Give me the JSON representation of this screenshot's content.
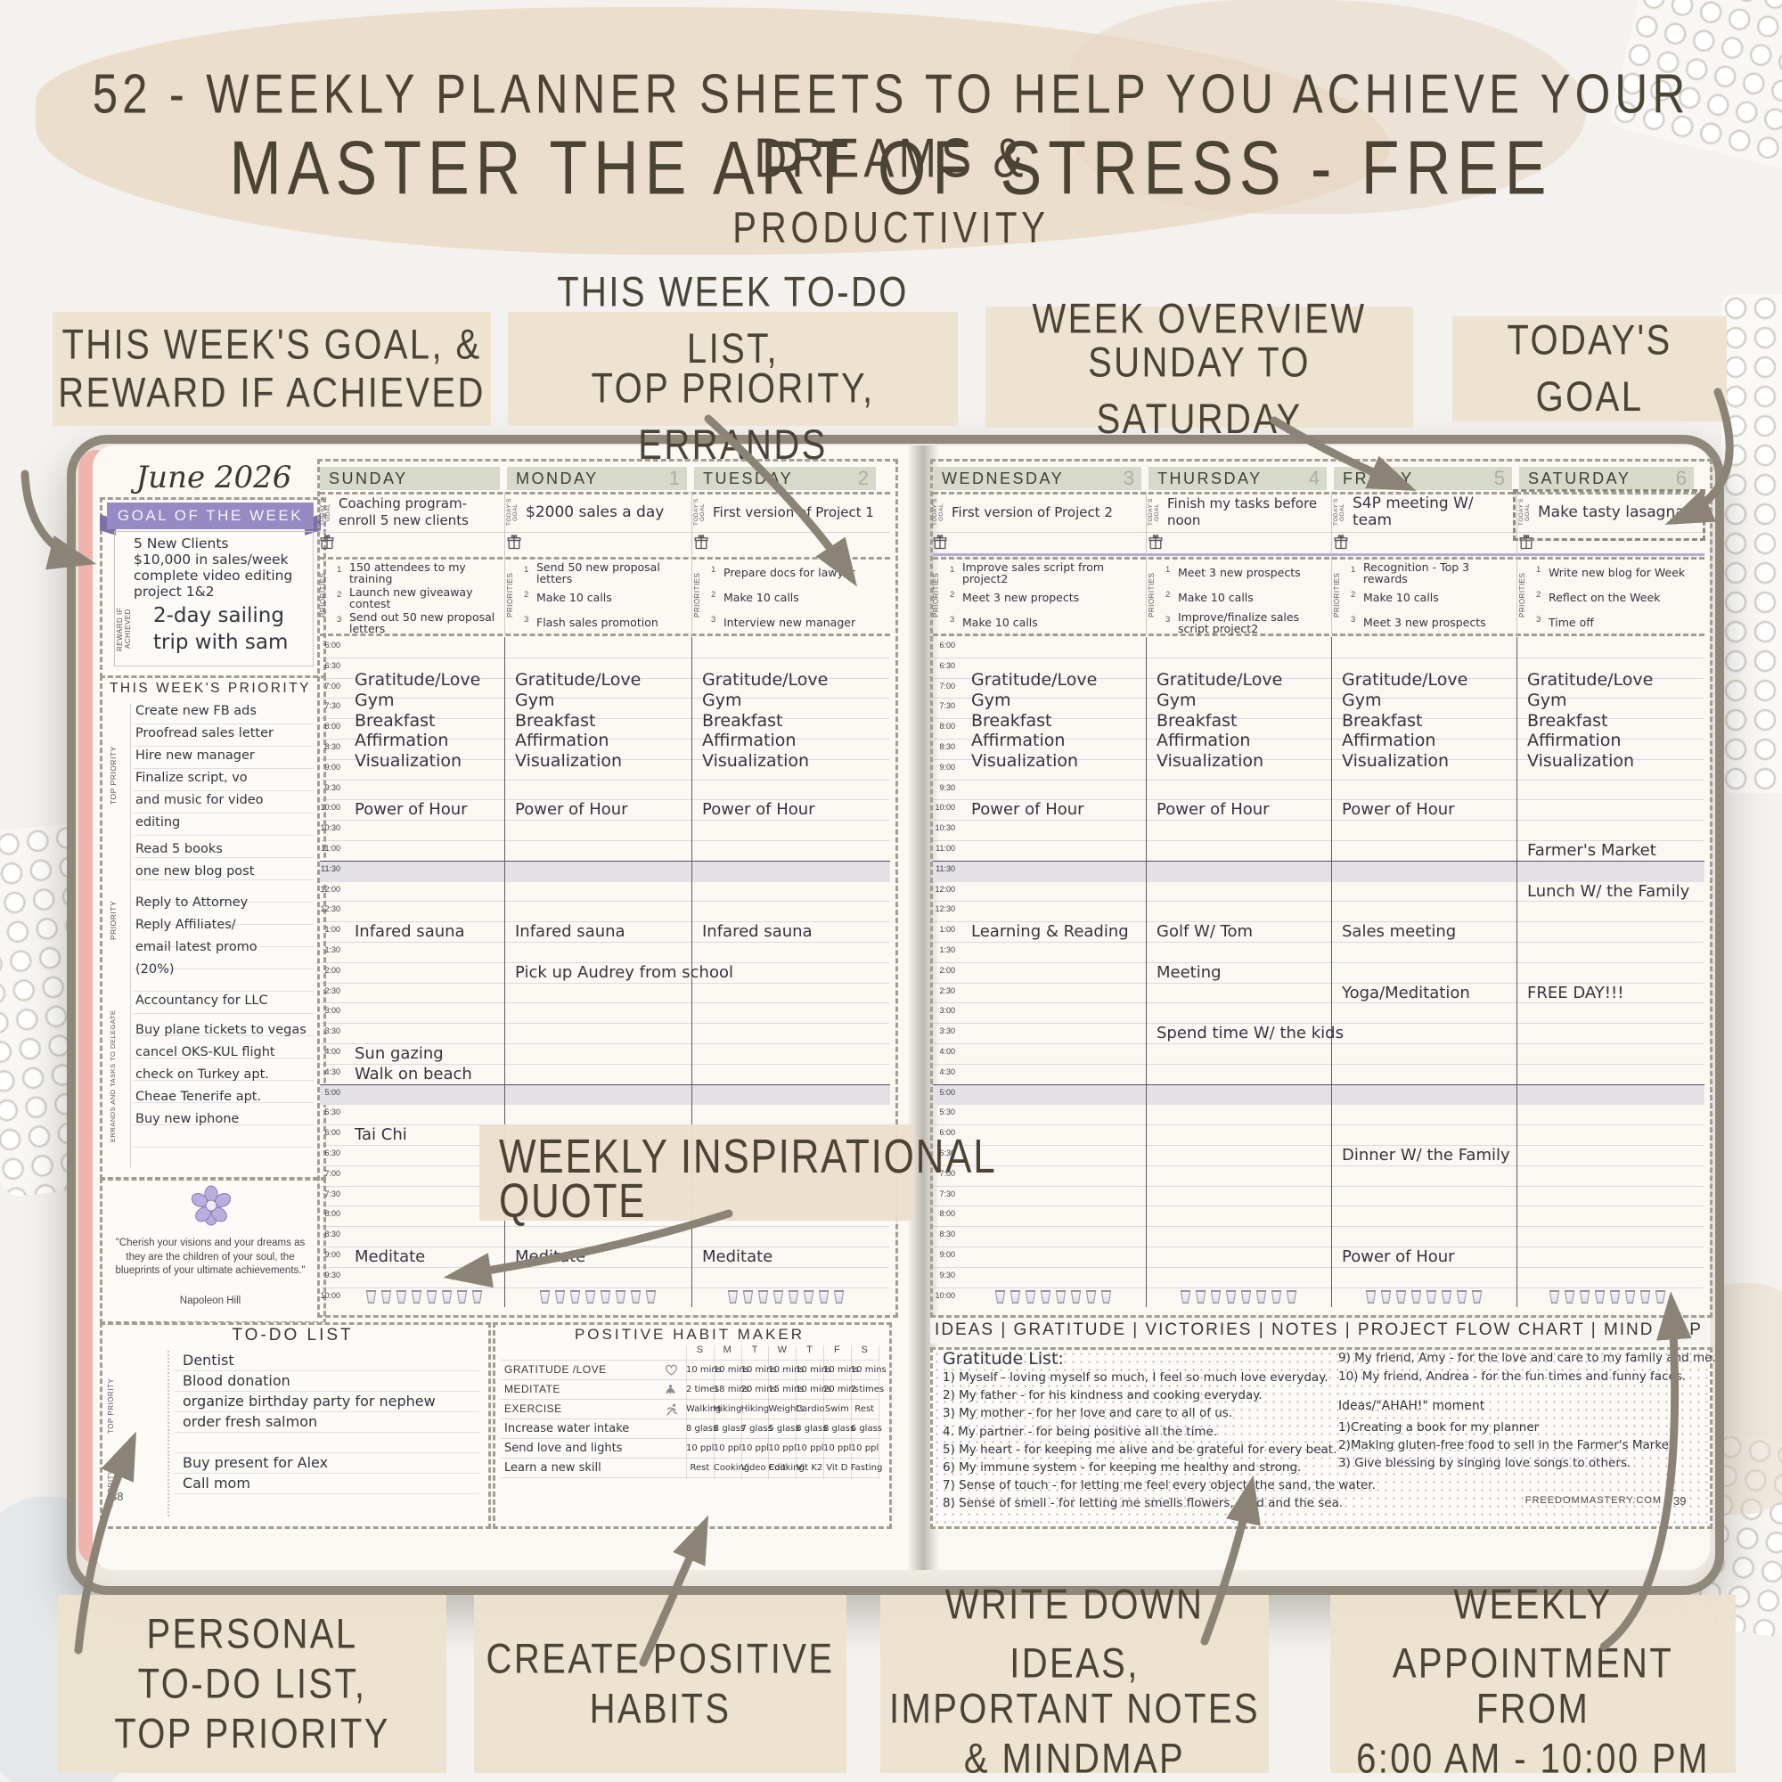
{
  "title": {
    "line1": "52 - WEEKLY PLANNER SHEETS TO HELP YOU ACHIEVE YOUR DREAMS &",
    "line2": "MASTER THE ART OF STRESS - FREE",
    "line3": "PRODUCTIVITY"
  },
  "callouts": {
    "top": [
      {
        "lines": [
          "THIS WEEK'S GOAL, &",
          "REWARD IF ACHIEVED"
        ]
      },
      {
        "lines": [
          "THIS WEEK TO-DO LIST,",
          "TOP PRIORITY, ERRANDS"
        ]
      },
      {
        "lines": [
          "WEEK OVERVIEW",
          "SUNDAY TO SATURDAY"
        ]
      },
      {
        "lines": [
          "TODAY'S GOAL"
        ]
      }
    ],
    "quote_label": {
      "lines": [
        "WEEKLY INSPIRATIONAL",
        "QUOTE"
      ]
    },
    "bottom": [
      {
        "lines": [
          "PERSONAL",
          "TO-DO LIST,",
          "TOP PRIORITY"
        ]
      },
      {
        "lines": [
          "CREATE POSITIVE",
          "HABITS"
        ]
      },
      {
        "lines": [
          "WRITE DOWN IDEAS,",
          "IMPORTANT NOTES",
          "& MINDMAP"
        ]
      },
      {
        "lines": [
          "WEEKLY APPOINTMENT",
          "FROM",
          "6:00 AM - 10:00 PM"
        ]
      }
    ]
  },
  "colors": {
    "accent_purple": "#958ac2",
    "pink_edge": "#efb5ad",
    "callout_bg": "#ece2ce",
    "band": "#d7d9cb",
    "arrow": "#8b8375"
  },
  "planner": {
    "month": "June 2026",
    "goal_of_week": {
      "banner": "GOAL OF THE WEEK",
      "goal_lines": [
        "5 New Clients",
        "$10,000 in sales/week",
        "complete video editing",
        "project 1&2"
      ],
      "reward_label": "REWARD IF ACHIEVED",
      "reward_lines": [
        "2-day sailing",
        "trip with sam"
      ]
    },
    "week_priority": {
      "header": "THIS WEEK'S PRIORITY",
      "side_labels": [
        "TOP PRIORITY",
        "PRIORITY",
        "ERRANDS AND TASKS TO DELEGATE"
      ],
      "groups": [
        [
          "Create new FB ads",
          "Proofread sales letter",
          "Hire new manager",
          "Finalize script, vo",
          "and music for video",
          "editing"
        ],
        [
          "Read 5 books",
          "one new blog post"
        ],
        [
          "Reply to Attorney",
          "Reply Affiliates/",
          "email latest promo",
          "(20%)"
        ],
        [
          "Accountancy for LLC"
        ],
        [
          "Buy plane tickets to vegas",
          "cancel OKS-KUL flight",
          "check on Turkey apt.",
          "Cheae Tenerife apt.",
          "Buy new iphone"
        ]
      ]
    },
    "quote": {
      "text": "\"Cherish your visions and your dreams as they are the children of your soul, the blueprints of your ultimate achievements.\"",
      "author": "Napoleon Hill"
    },
    "labels": {
      "todays_goal": "TODAY'S GOAL",
      "priorities": "PRIORITIES"
    },
    "times": [
      "6:00",
      "6:30",
      "7:00",
      "7:30",
      "8:00",
      "8:30",
      "9:00",
      "9:30",
      "10:00",
      "10:30",
      "11:00",
      "11:30",
      "12:00",
      "12:30",
      "1:00",
      "1:30",
      "2:00",
      "2:30",
      "3:00",
      "3:30",
      "4:00",
      "4:30",
      "5:00",
      "5:30",
      "6:00",
      "6:30",
      "7:00",
      "7:30",
      "8:00",
      "8:30",
      "9:00",
      "9:30",
      "10:00"
    ],
    "routine": [
      "Gratitude/Love",
      "Gym",
      "Breakfast",
      "Affirmation",
      "Visualization"
    ],
    "days": [
      {
        "name": "SUNDAY",
        "num": "",
        "goal": "Coaching program-enroll 5 new clients",
        "priorities": [
          "150 attendees to my training",
          "Launch new giveaway contest",
          "Send out 50 new proposal letters"
        ],
        "events": [
          {
            "row": 8,
            "text": "Power of Hour"
          },
          {
            "row": 14,
            "text": "Infared sauna"
          },
          {
            "row": 20,
            "text": "Sun gazing"
          },
          {
            "row": 21,
            "text": "Walk on beach"
          },
          {
            "row": 24,
            "text": "Tai Chi"
          },
          {
            "row": 30,
            "text": "Meditate"
          }
        ]
      },
      {
        "name": "MONDAY",
        "num": "1",
        "goal": "$2000 sales a day",
        "priorities": [
          "Send 50 new proposal letters",
          "Make 10 calls",
          "Flash sales promotion"
        ],
        "events": [
          {
            "row": 8,
            "text": "Power of Hour"
          },
          {
            "row": 14,
            "text": "Infared sauna"
          },
          {
            "row": 16,
            "text": "Pick up Audrey from school"
          },
          {
            "row": 30,
            "text": "Meditate"
          }
        ]
      },
      {
        "name": "TUESDAY",
        "num": "2",
        "goal": "First version of Project 1",
        "priorities": [
          "Prepare docs for lawyer",
          "Make 10 calls",
          "Interview new manager"
        ],
        "events": [
          {
            "row": 8,
            "text": "Power of Hour"
          },
          {
            "row": 14,
            "text": "Infared sauna"
          },
          {
            "row": 30,
            "text": "Meditate"
          }
        ]
      },
      {
        "name": "WEDNESDAY",
        "num": "3",
        "goal": "First version of Project 2",
        "priorities": [
          "Improve sales script from project2",
          "Meet 3 new propects",
          "Make 10 calls"
        ],
        "events": [
          {
            "row": 8,
            "text": "Power of Hour"
          },
          {
            "row": 14,
            "text": "Learning & Reading"
          }
        ]
      },
      {
        "name": "THURSDAY",
        "num": "4",
        "goal": "Finish my tasks before noon",
        "priorities": [
          "Meet 3 new prospects",
          "Make 10 calls",
          "Improve/finalize sales script project2"
        ],
        "events": [
          {
            "row": 8,
            "text": "Power of Hour"
          },
          {
            "row": 14,
            "text": "Golf W/ Tom"
          },
          {
            "row": 16,
            "text": "Meeting"
          },
          {
            "row": 19,
            "text": "Spend time W/ the kids"
          }
        ]
      },
      {
        "name": "FRIDAY",
        "num": "5",
        "goal": "S4P meeting W/ team",
        "priorities": [
          "Recognition - Top 3 rewards",
          "Make 10 calls",
          "Meet 3 new prospects"
        ],
        "events": [
          {
            "row": 8,
            "text": "Power of Hour"
          },
          {
            "row": 14,
            "text": "Sales meeting"
          },
          {
            "row": 17,
            "text": "Yoga/Meditation"
          },
          {
            "row": 25,
            "text": "Dinner W/ the Family"
          },
          {
            "row": 30,
            "text": "Power of Hour"
          }
        ]
      },
      {
        "name": "SATURDAY",
        "num": "6",
        "goal": "Make tasty lasagna",
        "priorities": [
          "Write new blog for Week",
          "Reflect on the Week",
          "Time off"
        ],
        "events": [
          {
            "row": 10,
            "text": "Farmer's Market"
          },
          {
            "row": 12,
            "text": "Lunch W/ the Family"
          },
          {
            "row": 17,
            "text": "FREE DAY!!!"
          }
        ]
      }
    ],
    "water_glasses_per_day": 8,
    "todo": {
      "header": "TO-DO LIST",
      "side_labels": [
        "TOP PRIORITY",
        "PRIORITY"
      ],
      "items": [
        "Dentist",
        "Blood donation",
        "organize birthday party for nephew",
        "order fresh salmon",
        "",
        "Buy present for Alex",
        "Call mom"
      ],
      "page_number": "38"
    },
    "habits": {
      "header": "POSITIVE HABIT MAKER",
      "day_letters": [
        "S",
        "M",
        "T",
        "W",
        "T",
        "F",
        "S"
      ],
      "rows": [
        {
          "label": "GRATITUDE /LOVE",
          "icon": "heart-icon",
          "style": "print",
          "values": [
            "10 mins",
            "10 mins",
            "10 mins",
            "10 mins",
            "10 mins",
            "10 mins",
            "10 mins"
          ]
        },
        {
          "label": "MEDITATE",
          "icon": "meditation-icon",
          "style": "print",
          "values": [
            "2 times",
            "18 mins",
            "20 mins",
            "15 mins",
            "10 mins",
            "20 mins",
            "2 times"
          ]
        },
        {
          "label": "EXERCISE",
          "icon": "runner-icon",
          "style": "print",
          "values": [
            "Walking",
            "Hiking",
            "Hiking",
            "Weights",
            "Cardio",
            "Swim",
            "Rest"
          ]
        },
        {
          "label": "Increase water intake",
          "icon": "",
          "style": "hand",
          "values": [
            "8 glass",
            "8 glass",
            "7 glass",
            "5 glass",
            "8 glass",
            "8 glass",
            "6 glass"
          ]
        },
        {
          "label": "Send love and lights",
          "icon": "",
          "style": "hand",
          "values": [
            "10 ppl",
            "10 ppl",
            "10 ppl",
            "10 ppl",
            "10 ppl",
            "10 ppl",
            "10 ppl"
          ]
        },
        {
          "label": "Learn a new skill",
          "icon": "",
          "style": "hand",
          "values": [
            "Rest",
            "Cooking",
            "Video Edit",
            "Cooking",
            "Vit K2",
            "Vit D",
            "Fasting"
          ]
        }
      ]
    },
    "notes": {
      "tabs": [
        "IDEAS",
        "GRATITUDE",
        "VICTORIES",
        "NOTES",
        "PROJECT FLOW CHART",
        "MIND MAP"
      ],
      "gratitude_title": "Gratitude List:",
      "gratitude_col1": [
        "1) Myself - loving myself so much, I feel so much love everyday.",
        "2) My father - for his kindness and cooking everyday.",
        "3) My mother - for her love and care to all of us.",
        "4. My partner - for being positive all the time.",
        "5) My heart - for keeping me alive and be grateful for every beat.",
        "6) My immune system - for keeping me healthy and strong.",
        "7) Sense of touch - for letting me feel every object, the sand, the water.",
        "8) Sense of smell - for letting me smells flowers, food and the sea."
      ],
      "gratitude_col2": [
        "9) My friend, Amy - for the love and care to my family and me.",
        "10) My friend, Andrea - for the fun times and funny faces."
      ],
      "ideas_title": "Ideas/\"AHAH!\" moment",
      "ideas_items": [
        "1)Creating a book for my planner",
        "2)Making gluten-free food to sell in the Farmer's Market",
        "3) Give blessing by singing love songs to others."
      ],
      "footer": "FREEDOMMASTERY.COM",
      "page_number": "39"
    }
  }
}
